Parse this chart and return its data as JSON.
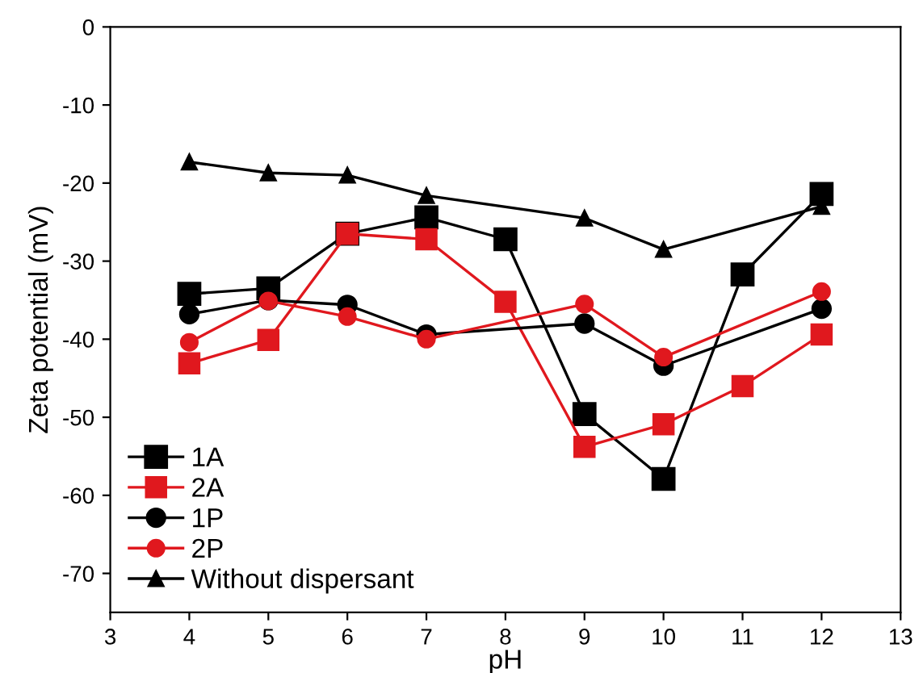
{
  "chart_data": {
    "type": "line",
    "xlabel": "pH",
    "ylabel": "Zeta potential (mV)",
    "xlim": [
      3,
      13
    ],
    "ylim": [
      -75,
      0
    ],
    "xticks": [
      3,
      4,
      5,
      6,
      7,
      8,
      9,
      10,
      11,
      12,
      13
    ],
    "yticks": [
      0,
      -10,
      -20,
      -30,
      -40,
      -50,
      -60,
      -70
    ],
    "grid": false,
    "legend": "bottom left",
    "series": [
      {
        "name": "1A",
        "color": "#000000",
        "marker": "square",
        "x": [
          4,
          5,
          6,
          7,
          8,
          9,
          10,
          11,
          12
        ],
        "values": [
          -34.2,
          -33.5,
          -26.5,
          -24.4,
          -27.2,
          -49.6,
          -57.9,
          -31.7,
          -21.4
        ]
      },
      {
        "name": "2A",
        "color": "#e0181e",
        "marker": "square",
        "x": [
          4,
          5,
          6,
          7,
          8,
          9,
          10,
          11,
          12
        ],
        "values": [
          -43.1,
          -40.1,
          -26.5,
          -27.2,
          -35.2,
          -53.8,
          -50.9,
          -46.0,
          -39.4
        ]
      },
      {
        "name": "1P",
        "color": "#000000",
        "marker": "circle",
        "x": [
          4,
          5,
          6,
          7,
          9,
          10,
          12
        ],
        "values": [
          -36.8,
          -35.0,
          -35.6,
          -39.4,
          -38.0,
          -43.4,
          -36.1
        ]
      },
      {
        "name": "2P",
        "color": "#e0181e",
        "marker": "circle",
        "x": [
          4,
          5,
          6,
          7,
          9,
          10,
          12
        ],
        "values": [
          -40.4,
          -35.1,
          -37.1,
          -40.0,
          -35.5,
          -42.3,
          -33.9
        ]
      },
      {
        "name": "Without dispersant",
        "color": "#000000",
        "marker": "triangle",
        "x": [
          4,
          5,
          6,
          7,
          9,
          10,
          12
        ],
        "values": [
          -17.3,
          -18.7,
          -19.0,
          -21.6,
          -24.5,
          -28.5,
          -23.0
        ]
      }
    ]
  }
}
